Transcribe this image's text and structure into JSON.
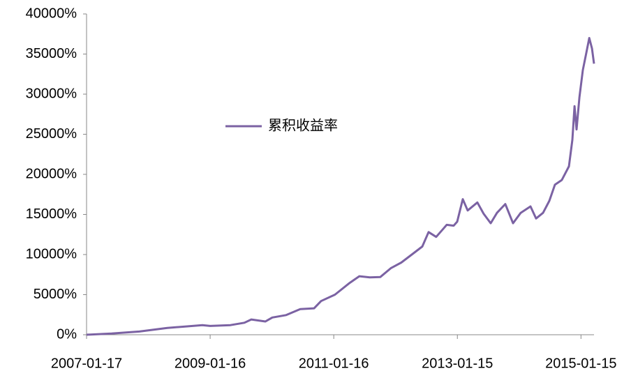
{
  "chart_data": {
    "type": "line",
    "x": [
      "2007-01-17",
      "2007-06-14",
      "2007-11-25",
      "2008-05-08",
      "2008-09-09",
      "2008-12-01",
      "2009-01-16",
      "2009-05-16",
      "2009-08-06",
      "2009-09-16",
      "2009-12-08",
      "2010-01-18",
      "2010-04-10",
      "2010-07-02",
      "2010-09-22",
      "2010-11-02",
      "2011-01-23",
      "2011-04-16",
      "2011-06-16",
      "2011-08-17",
      "2011-10-18",
      "2011-12-19",
      "2012-02-19",
      "2012-04-21",
      "2012-06-22",
      "2012-07-29",
      "2012-09-12",
      "2012-11-13",
      "2012-12-24",
      "2013-01-14",
      "2013-02-16",
      "2013-03-17",
      "2013-05-13",
      "2013-06-19",
      "2013-07-31",
      "2013-09-06",
      "2013-10-25",
      "2013-12-10",
      "2014-01-24",
      "2014-03-23",
      "2014-04-25",
      "2014-06-05",
      "2014-07-12",
      "2014-08-14",
      "2014-09-24",
      "2014-11-05",
      "2014-11-25",
      "2014-12-08",
      "2014-12-20",
      "2015-01-06",
      "2015-01-26",
      "2015-02-16",
      "2015-03-05",
      "2015-03-21",
      "2015-04-02"
    ],
    "series": [
      {
        "name": "累积收益率",
        "color": "#7b62a3",
        "values": [
          0,
          150,
          400,
          850,
          1050,
          1200,
          1100,
          1200,
          1500,
          1900,
          1650,
          2150,
          2450,
          3200,
          3300,
          4200,
          5000,
          6400,
          7300,
          7150,
          7200,
          8300,
          9000,
          10000,
          11000,
          12800,
          12200,
          13700,
          13600,
          14100,
          16900,
          15500,
          16500,
          15100,
          13900,
          15200,
          16300,
          13900,
          15200,
          16000,
          14500,
          15200,
          16700,
          18700,
          19300,
          21000,
          24300,
          28500,
          25600,
          29600,
          33000,
          35200,
          37000,
          35700,
          33800
        ]
      }
    ],
    "xlim": [
      "2007-01-17",
      "2015-04-02"
    ],
    "xticks": [
      "2007-01-17",
      "2009-01-16",
      "2011-01-16",
      "2013-01-15",
      "2015-01-15"
    ],
    "ylim": [
      0,
      40000
    ],
    "yticks": [
      {
        "value": 0,
        "label": "0%"
      },
      {
        "value": 5000,
        "label": "5000%"
      },
      {
        "value": 10000,
        "label": "10000%"
      },
      {
        "value": 15000,
        "label": "15000%"
      },
      {
        "value": 20000,
        "label": "20000%"
      },
      {
        "value": 25000,
        "label": "25000%"
      },
      {
        "value": 30000,
        "label": "30000%"
      },
      {
        "value": 35000,
        "label": "35000%"
      },
      {
        "value": 40000,
        "label": "40000%"
      }
    ],
    "legend": "inside-left"
  }
}
